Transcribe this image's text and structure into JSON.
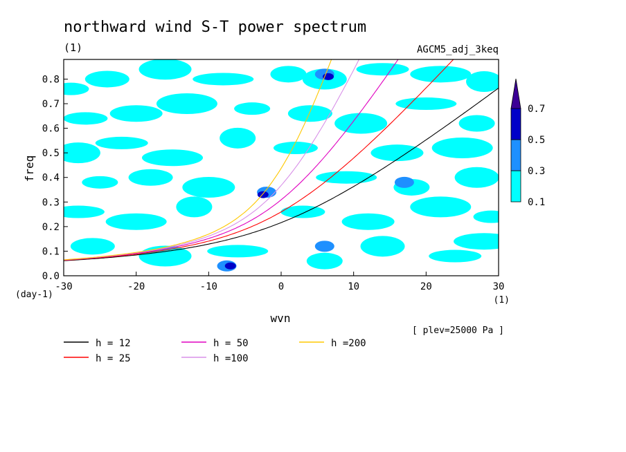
{
  "chart_data": {
    "type": "heatmap",
    "title": "northward wind S-T power spectrum",
    "units_label": "(1)",
    "experiment": "AGCM5_adj_3keq",
    "xlabel": "wvn",
    "x_units": "(1)",
    "ylabel": "freq",
    "y_units": "(day-1)",
    "xlim": [
      -30,
      30
    ],
    "ylim": [
      0.0,
      0.88
    ],
    "x_ticks": [
      -30,
      -20,
      -10,
      0,
      10,
      20,
      30
    ],
    "x_tick_labels": [
      "-30",
      "-20",
      "-10",
      "0",
      "10",
      "20",
      "30"
    ],
    "y_ticks": [
      0.0,
      0.1,
      0.2,
      0.3,
      0.4,
      0.5,
      0.6,
      0.7,
      0.8
    ],
    "y_tick_labels": [
      "0.0",
      "0.1",
      "0.2",
      "0.3",
      "0.4",
      "0.5",
      "0.6",
      "0.7",
      "0.8"
    ],
    "level_note": "[ plev=25000 Pa ]",
    "colorbar": {
      "levels": [
        0.1,
        0.3,
        0.5,
        0.7
      ],
      "level_labels": [
        "0.1",
        "0.3",
        "0.5",
        "0.7"
      ],
      "colors": [
        "#00ffff",
        "#1e90ff",
        "#0000c8",
        "#3c0096"
      ]
    },
    "shaded_regions": [
      {
        "x": -29,
        "y": 0.76,
        "level": 0.1
      },
      {
        "x": -24,
        "y": 0.8,
        "level": 0.1
      },
      {
        "x": -16,
        "y": 0.84,
        "level": 0.1
      },
      {
        "x": -8,
        "y": 0.8,
        "level": 0.1
      },
      {
        "x": 1,
        "y": 0.82,
        "level": 0.1
      },
      {
        "x": 6,
        "y": 0.8,
        "level": 0.1
      },
      {
        "x": 14,
        "y": 0.84,
        "level": 0.1
      },
      {
        "x": 22,
        "y": 0.82,
        "level": 0.1
      },
      {
        "x": 28,
        "y": 0.79,
        "level": 0.1
      },
      {
        "x": -27,
        "y": 0.64,
        "level": 0.1
      },
      {
        "x": -20,
        "y": 0.66,
        "level": 0.1
      },
      {
        "x": -13,
        "y": 0.7,
        "level": 0.1
      },
      {
        "x": -4,
        "y": 0.68,
        "level": 0.1
      },
      {
        "x": 4,
        "y": 0.66,
        "level": 0.1
      },
      {
        "x": 11,
        "y": 0.62,
        "level": 0.1
      },
      {
        "x": 20,
        "y": 0.7,
        "level": 0.1
      },
      {
        "x": 27,
        "y": 0.62,
        "level": 0.1
      },
      {
        "x": -28,
        "y": 0.5,
        "level": 0.1
      },
      {
        "x": -22,
        "y": 0.54,
        "level": 0.1
      },
      {
        "x": -15,
        "y": 0.48,
        "level": 0.1
      },
      {
        "x": -6,
        "y": 0.56,
        "level": 0.1
      },
      {
        "x": 2,
        "y": 0.52,
        "level": 0.1
      },
      {
        "x": 16,
        "y": 0.5,
        "level": 0.1
      },
      {
        "x": 25,
        "y": 0.52,
        "level": 0.1
      },
      {
        "x": -25,
        "y": 0.38,
        "level": 0.1
      },
      {
        "x": -18,
        "y": 0.4,
        "level": 0.1
      },
      {
        "x": -10,
        "y": 0.36,
        "level": 0.1
      },
      {
        "x": 9,
        "y": 0.4,
        "level": 0.1
      },
      {
        "x": 18,
        "y": 0.36,
        "level": 0.1
      },
      {
        "x": 27,
        "y": 0.4,
        "level": 0.1
      },
      {
        "x": -28,
        "y": 0.26,
        "level": 0.1
      },
      {
        "x": -20,
        "y": 0.22,
        "level": 0.1
      },
      {
        "x": -12,
        "y": 0.28,
        "level": 0.1
      },
      {
        "x": 3,
        "y": 0.26,
        "level": 0.1
      },
      {
        "x": 12,
        "y": 0.22,
        "level": 0.1
      },
      {
        "x": 22,
        "y": 0.28,
        "level": 0.1
      },
      {
        "x": 29,
        "y": 0.24,
        "level": 0.1
      },
      {
        "x": -26,
        "y": 0.12,
        "level": 0.1
      },
      {
        "x": -16,
        "y": 0.08,
        "level": 0.1
      },
      {
        "x": -6,
        "y": 0.1,
        "level": 0.1
      },
      {
        "x": 6,
        "y": 0.06,
        "level": 0.1
      },
      {
        "x": 14,
        "y": 0.12,
        "level": 0.1
      },
      {
        "x": 24,
        "y": 0.08,
        "level": 0.1
      },
      {
        "x": 28,
        "y": 0.14,
        "level": 0.1
      },
      {
        "x": -2,
        "y": 0.34,
        "level": 0.3
      },
      {
        "x": -7.5,
        "y": 0.04,
        "level": 0.3
      },
      {
        "x": 6,
        "y": 0.82,
        "level": 0.3
      },
      {
        "x": 17,
        "y": 0.38,
        "level": 0.3
      },
      {
        "x": 6,
        "y": 0.12,
        "level": 0.3
      },
      {
        "x": -2.5,
        "y": 0.33,
        "level": 0.5
      },
      {
        "x": -7,
        "y": 0.04,
        "level": 0.5
      },
      {
        "x": 6.5,
        "y": 0.81,
        "level": 0.5
      }
    ],
    "series": [
      {
        "name": "h = 12",
        "color": "#000000",
        "h": 12
      },
      {
        "name": "h = 25",
        "color": "#ff0000",
        "h": 25
      },
      {
        "name": "h = 50",
        "color": "#e000c0",
        "h": 50
      },
      {
        "name": "h =100",
        "color": "#d890e8",
        "h": 100
      },
      {
        "name": "h =200",
        "color": "#ffc800",
        "h": 200
      }
    ]
  }
}
